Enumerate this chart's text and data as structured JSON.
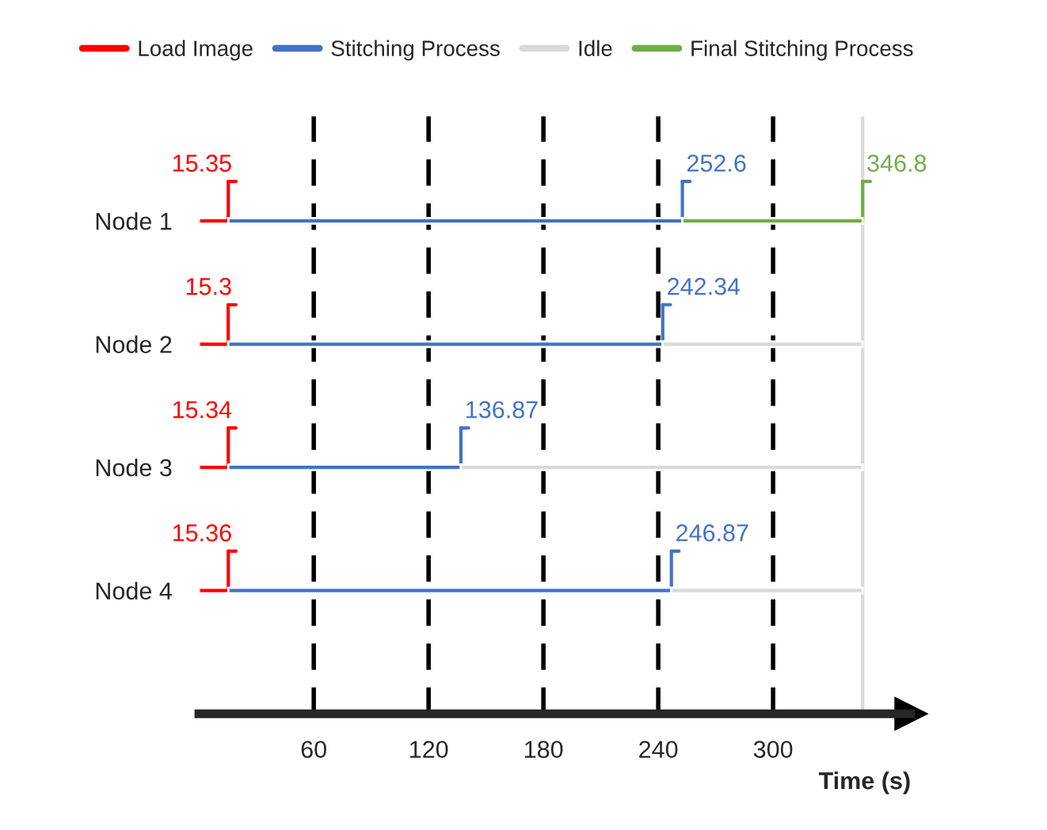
{
  "chart_data": {
    "type": "bar",
    "orientation": "horizontal",
    "categories": [
      "Node 1",
      "Node 2",
      "Node 3",
      "Node 4"
    ],
    "series": [
      {
        "name": "Load Image",
        "color": "#ff0000",
        "base": [
          0,
          0,
          0,
          0
        ],
        "values": [
          15.35,
          15.3,
          15.34,
          15.36
        ],
        "value_labels": [
          "15.35",
          "15.3",
          "15.34",
          "15.36"
        ]
      },
      {
        "name": "Stitching Process",
        "color": "#4472c4",
        "base": [
          15.35,
          15.3,
          15.34,
          15.36
        ],
        "values": [
          237.25,
          227.04,
          121.53,
          231.51
        ],
        "value_labels": [
          "252.6",
          "242.34",
          "136.87",
          "246.87"
        ]
      },
      {
        "name": "Idle",
        "color": "#d9d9d9",
        "base": [
          null,
          242.34,
          136.87,
          246.87
        ],
        "values": [
          null,
          104.46,
          209.93,
          99.93
        ]
      },
      {
        "name": "Final Stitching Process",
        "color": "#70ad47",
        "base": [
          252.6,
          null,
          null,
          null
        ],
        "values": [
          94.2,
          null,
          null,
          null
        ],
        "value_labels": [
          "346.8",
          null,
          null,
          null
        ]
      }
    ],
    "xlabel": "Time (s)",
    "xlim": [
      0,
      372
    ],
    "xticks": [
      60,
      120,
      180,
      240,
      300
    ],
    "grid": "x",
    "legend": "top",
    "ref_lines": [
      {
        "axis": "x",
        "value": 346.8,
        "color": "#d9d9d9"
      }
    ]
  }
}
